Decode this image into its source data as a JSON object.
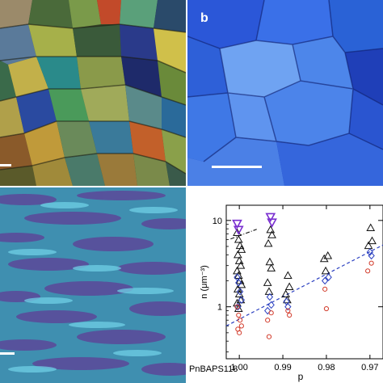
{
  "panels": {
    "a": {
      "letter": ""
    },
    "b": {
      "letter": "b"
    },
    "c": {
      "letter": ""
    }
  },
  "chart_data": {
    "type": "scatter",
    "title": "",
    "xlabel": "p",
    "ylabel": "n  (μm⁻³)",
    "sample_label": "PnBAPS118",
    "xlim": [
      1.003,
      0.967
    ],
    "ylim_log": [
      0.25,
      15
    ],
    "x_ticks": [
      {
        "value": 1.0,
        "label": "1.00"
      },
      {
        "value": 0.99,
        "label": "0.99"
      },
      {
        "value": 0.98,
        "label": "0.98"
      },
      {
        "value": 0.97,
        "label": "0.97"
      }
    ],
    "y_ticks": [
      {
        "value": 1,
        "label": "1"
      },
      {
        "value": 10,
        "label": "10"
      }
    ],
    "series": [
      {
        "marker": "triangle-up",
        "color": "#111111",
        "x": [
          1.0,
          1.0,
          1.0,
          1.0,
          1.0,
          1.0,
          1.0,
          1.0,
          1.0,
          1.0,
          1.0,
          1.0,
          1.0,
          1.0,
          1.0,
          1.0,
          0.993,
          0.993,
          0.993,
          0.993,
          0.993,
          0.993,
          0.993,
          0.989,
          0.989,
          0.989,
          0.989,
          0.98,
          0.98,
          0.98,
          0.97,
          0.97,
          0.97
        ],
        "y": [
          7.2,
          6.0,
          5.1,
          4.6,
          4.0,
          3.4,
          3.0,
          2.6,
          2.3,
          2.0,
          1.8,
          1.6,
          1.4,
          1.2,
          1.1,
          0.95,
          7.8,
          6.8,
          5.4,
          3.3,
          2.8,
          1.9,
          1.5,
          2.3,
          1.7,
          1.4,
          1.2,
          3.9,
          3.6,
          2.6,
          8.2,
          5.8,
          5.1
        ]
      },
      {
        "marker": "triangle-down",
        "color": "#7a2fd0",
        "x": [
          1.0,
          1.0,
          0.993,
          0.993
        ],
        "y": [
          9.2,
          7.8,
          11.0,
          9.5
        ]
      },
      {
        "marker": "diamond",
        "color": "#2a3fc0",
        "x": [
          1.0,
          1.0,
          1.0,
          1.0,
          1.0,
          0.993,
          0.993,
          0.993,
          0.989,
          0.989,
          0.98,
          0.98,
          0.97,
          0.97
        ],
        "y": [
          2.2,
          1.9,
          1.5,
          1.2,
          1.0,
          1.3,
          1.05,
          0.9,
          1.15,
          1.0,
          2.2,
          2.0,
          4.3,
          3.9
        ]
      },
      {
        "marker": "circle",
        "color": "#d23a2a",
        "x": [
          1.0,
          1.0,
          1.0,
          1.0,
          1.0,
          1.0,
          0.993,
          0.993,
          0.993,
          0.989,
          0.989,
          0.98,
          0.98,
          0.97,
          0.97
        ],
        "y": [
          1.0,
          0.8,
          0.7,
          0.6,
          0.55,
          0.5,
          0.85,
          0.7,
          0.45,
          0.9,
          0.8,
          1.6,
          0.95,
          3.2,
          2.6
        ]
      }
    ],
    "fit_line": {
      "style": "dashed",
      "color": "#2a3fc0",
      "x": [
        1.003,
        0.967
      ],
      "y": [
        0.6,
        5.2
      ]
    },
    "dashdot_line": {
      "style": "dashdot",
      "color": "#111111",
      "x": [
        1.002,
        0.996
      ],
      "y": [
        6.1,
        7.9
      ]
    }
  }
}
